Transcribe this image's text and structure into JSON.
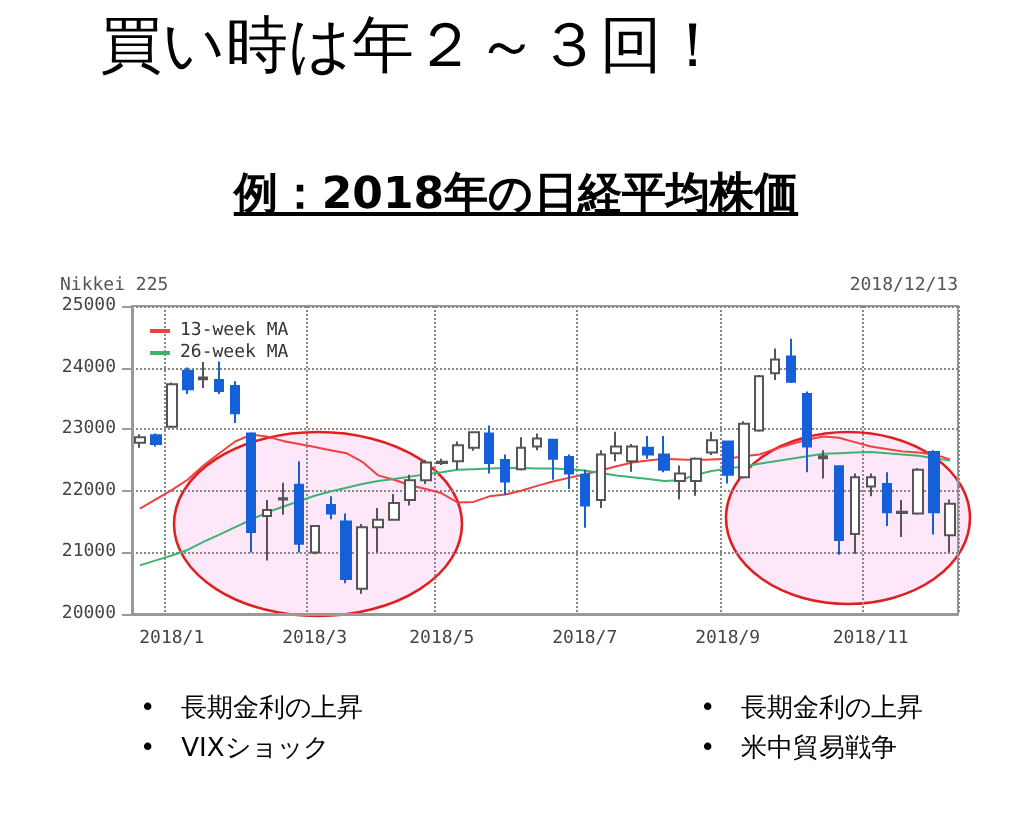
{
  "chart_data": {
    "type": "candlestick",
    "title": "買い時は年２～３回！",
    "subtitle": "例：2018年の日経平均株価",
    "annotations": [
      "Nikkei 225",
      "2018/12/13",
      "•　長期金利の上昇",
      "•　VIXショック",
      "•　長期金利の上昇",
      "•　米中貿易戦争"
    ],
    "categories": [
      null,
      null,
      "2018/1",
      null,
      null,
      null,
      null,
      null,
      null,
      null,
      null,
      "2018/3",
      null,
      null,
      null,
      null,
      null,
      null,
      null,
      "2018/5",
      null,
      null,
      null,
      null,
      null,
      null,
      null,
      null,
      "2018/7",
      null,
      null,
      null,
      null,
      null,
      null,
      null,
      null,
      "2018/9",
      null,
      null,
      null,
      null,
      null,
      null,
      null,
      null,
      "2018/11",
      null,
      null,
      null,
      null,
      null
    ],
    "series": [
      {
        "type": "candlestick",
        "colors": [
          "#ffffff",
          "#1560d8",
          "#ffffff",
          "#1560d8",
          "#ffffff",
          "#1560d8",
          "#1560d8",
          "#1560d8",
          "#ffffff",
          "#ffffff",
          "#1560d8",
          "#ffffff",
          "#1560d8",
          "#1560d8",
          "#ffffff",
          "#ffffff",
          "#ffffff",
          "#ffffff",
          "#ffffff",
          "#ffffff",
          "#ffffff",
          "#ffffff",
          "#1560d8",
          "#1560d8",
          "#ffffff",
          "#ffffff",
          "#1560d8",
          "#1560d8",
          "#1560d8",
          "#ffffff",
          "#ffffff",
          "#ffffff",
          "#1560d8",
          "#1560d8",
          "#ffffff",
          "#ffffff",
          "#ffffff",
          "#1560d8",
          "#ffffff",
          "#ffffff",
          "#ffffff",
          "#1560d8",
          "#1560d8",
          "#ffffff",
          "#1560d8",
          "#ffffff",
          "#ffffff",
          "#1560d8",
          "#ffffff",
          "#ffffff",
          "#1560d8",
          "#ffffff"
        ],
        "ohlc": [
          [
            22780,
            22920,
            22700,
            22870
          ],
          [
            22900,
            22930,
            22720,
            22760
          ],
          [
            23040,
            23760,
            23020,
            23730
          ],
          [
            23950,
            24000,
            23570,
            23650
          ],
          [
            23810,
            24090,
            23670,
            23840
          ],
          [
            23800,
            24100,
            23570,
            23620
          ],
          [
            23700,
            23780,
            23100,
            23260
          ],
          [
            22930,
            22950,
            21000,
            21330
          ],
          [
            21590,
            21850,
            20870,
            21690
          ],
          [
            21860,
            22130,
            21610,
            21880
          ],
          [
            22100,
            22480,
            21000,
            21140
          ],
          [
            21000,
            21440,
            20970,
            21430
          ],
          [
            21770,
            21910,
            21540,
            21630
          ],
          [
            21500,
            21630,
            20500,
            20570
          ],
          [
            20410,
            21460,
            20330,
            21410
          ],
          [
            21410,
            21720,
            21000,
            21530
          ],
          [
            21530,
            21950,
            21520,
            21800
          ],
          [
            21850,
            22260,
            21760,
            22170
          ],
          [
            22170,
            22500,
            22110,
            22460
          ],
          [
            22450,
            22520,
            22420,
            22470
          ],
          [
            22480,
            22800,
            22340,
            22740
          ],
          [
            22700,
            22960,
            22650,
            22950
          ],
          [
            22930,
            23060,
            22280,
            22450
          ],
          [
            22500,
            22590,
            21930,
            22150
          ],
          [
            22350,
            22870,
            22330,
            22700
          ],
          [
            22720,
            22930,
            22660,
            22850
          ],
          [
            22830,
            22830,
            22180,
            22520
          ],
          [
            22550,
            22590,
            22030,
            22280
          ],
          [
            22260,
            22340,
            21400,
            21760
          ],
          [
            21850,
            22660,
            21720,
            22590
          ],
          [
            22610,
            22960,
            22480,
            22720
          ],
          [
            22480,
            22760,
            22310,
            22720
          ],
          [
            22700,
            22890,
            22520,
            22590
          ],
          [
            22590,
            22890,
            22300,
            22340
          ],
          [
            22160,
            22410,
            21860,
            22280
          ],
          [
            22160,
            22540,
            21920,
            22520
          ],
          [
            22620,
            22960,
            22580,
            22820
          ],
          [
            22800,
            22800,
            22120,
            22260
          ],
          [
            22220,
            23130,
            22200,
            23090
          ],
          [
            22980,
            23880,
            22960,
            23860
          ],
          [
            23910,
            24310,
            23800,
            24130
          ],
          [
            24180,
            24470,
            23750,
            23770
          ],
          [
            23570,
            23610,
            22300,
            22720
          ],
          [
            22530,
            22660,
            22200,
            22560
          ],
          [
            22400,
            22400,
            20960,
            21200
          ],
          [
            21300,
            22280,
            20980,
            22220
          ],
          [
            22070,
            22280,
            21910,
            22220
          ],
          [
            22110,
            22300,
            21430,
            21650
          ],
          [
            21640,
            21850,
            21250,
            21660
          ],
          [
            21630,
            22370,
            21610,
            22340
          ],
          [
            22630,
            22660,
            21290,
            21650
          ],
          [
            21280,
            21860,
            21000,
            21790
          ]
        ]
      },
      {
        "type": "line",
        "name": "13-week MA",
        "color": "#f04040",
        "values": [
          21710,
          21860,
          22010,
          22180,
          22410,
          22610,
          22800,
          22910,
          22880,
          22810,
          22760,
          22710,
          22660,
          22610,
          22470,
          22250,
          22180,
          22090,
          22030,
          21960,
          21810,
          21820,
          21910,
          21940,
          22000,
          22080,
          22150,
          22210,
          22270,
          22330,
          22400,
          22460,
          22490,
          22520,
          22510,
          22500,
          22510,
          22520,
          22560,
          22590,
          22680,
          22760,
          22830,
          22880,
          22860,
          22790,
          22720,
          22680,
          22640,
          22620,
          22590,
          22510
        ]
      },
      {
        "type": "line",
        "name": "26-week MA",
        "color": "#3cb371",
        "values": [
          20790,
          20870,
          20950,
          21040,
          21170,
          21290,
          21410,
          21530,
          21650,
          21740,
          21830,
          21920,
          21990,
          22050,
          22110,
          22160,
          22190,
          22230,
          22270,
          22300,
          22340,
          22350,
          22360,
          22370,
          22370,
          22360,
          22360,
          22350,
          22330,
          22290,
          22250,
          22220,
          22190,
          22160,
          22170,
          22260,
          22320,
          22360,
          22400,
          22440,
          22480,
          22520,
          22560,
          22600,
          22610,
          22620,
          22630,
          22610,
          22590,
          22570,
          22530,
          22490
        ]
      }
    ],
    "ylim": [
      20000,
      25000
    ],
    "yticks": [
      20000,
      21000,
      22000,
      23000,
      24000,
      25000
    ],
    "grid": true,
    "legend": "top left",
    "marker": "none",
    "line_style": "solid"
  }
}
